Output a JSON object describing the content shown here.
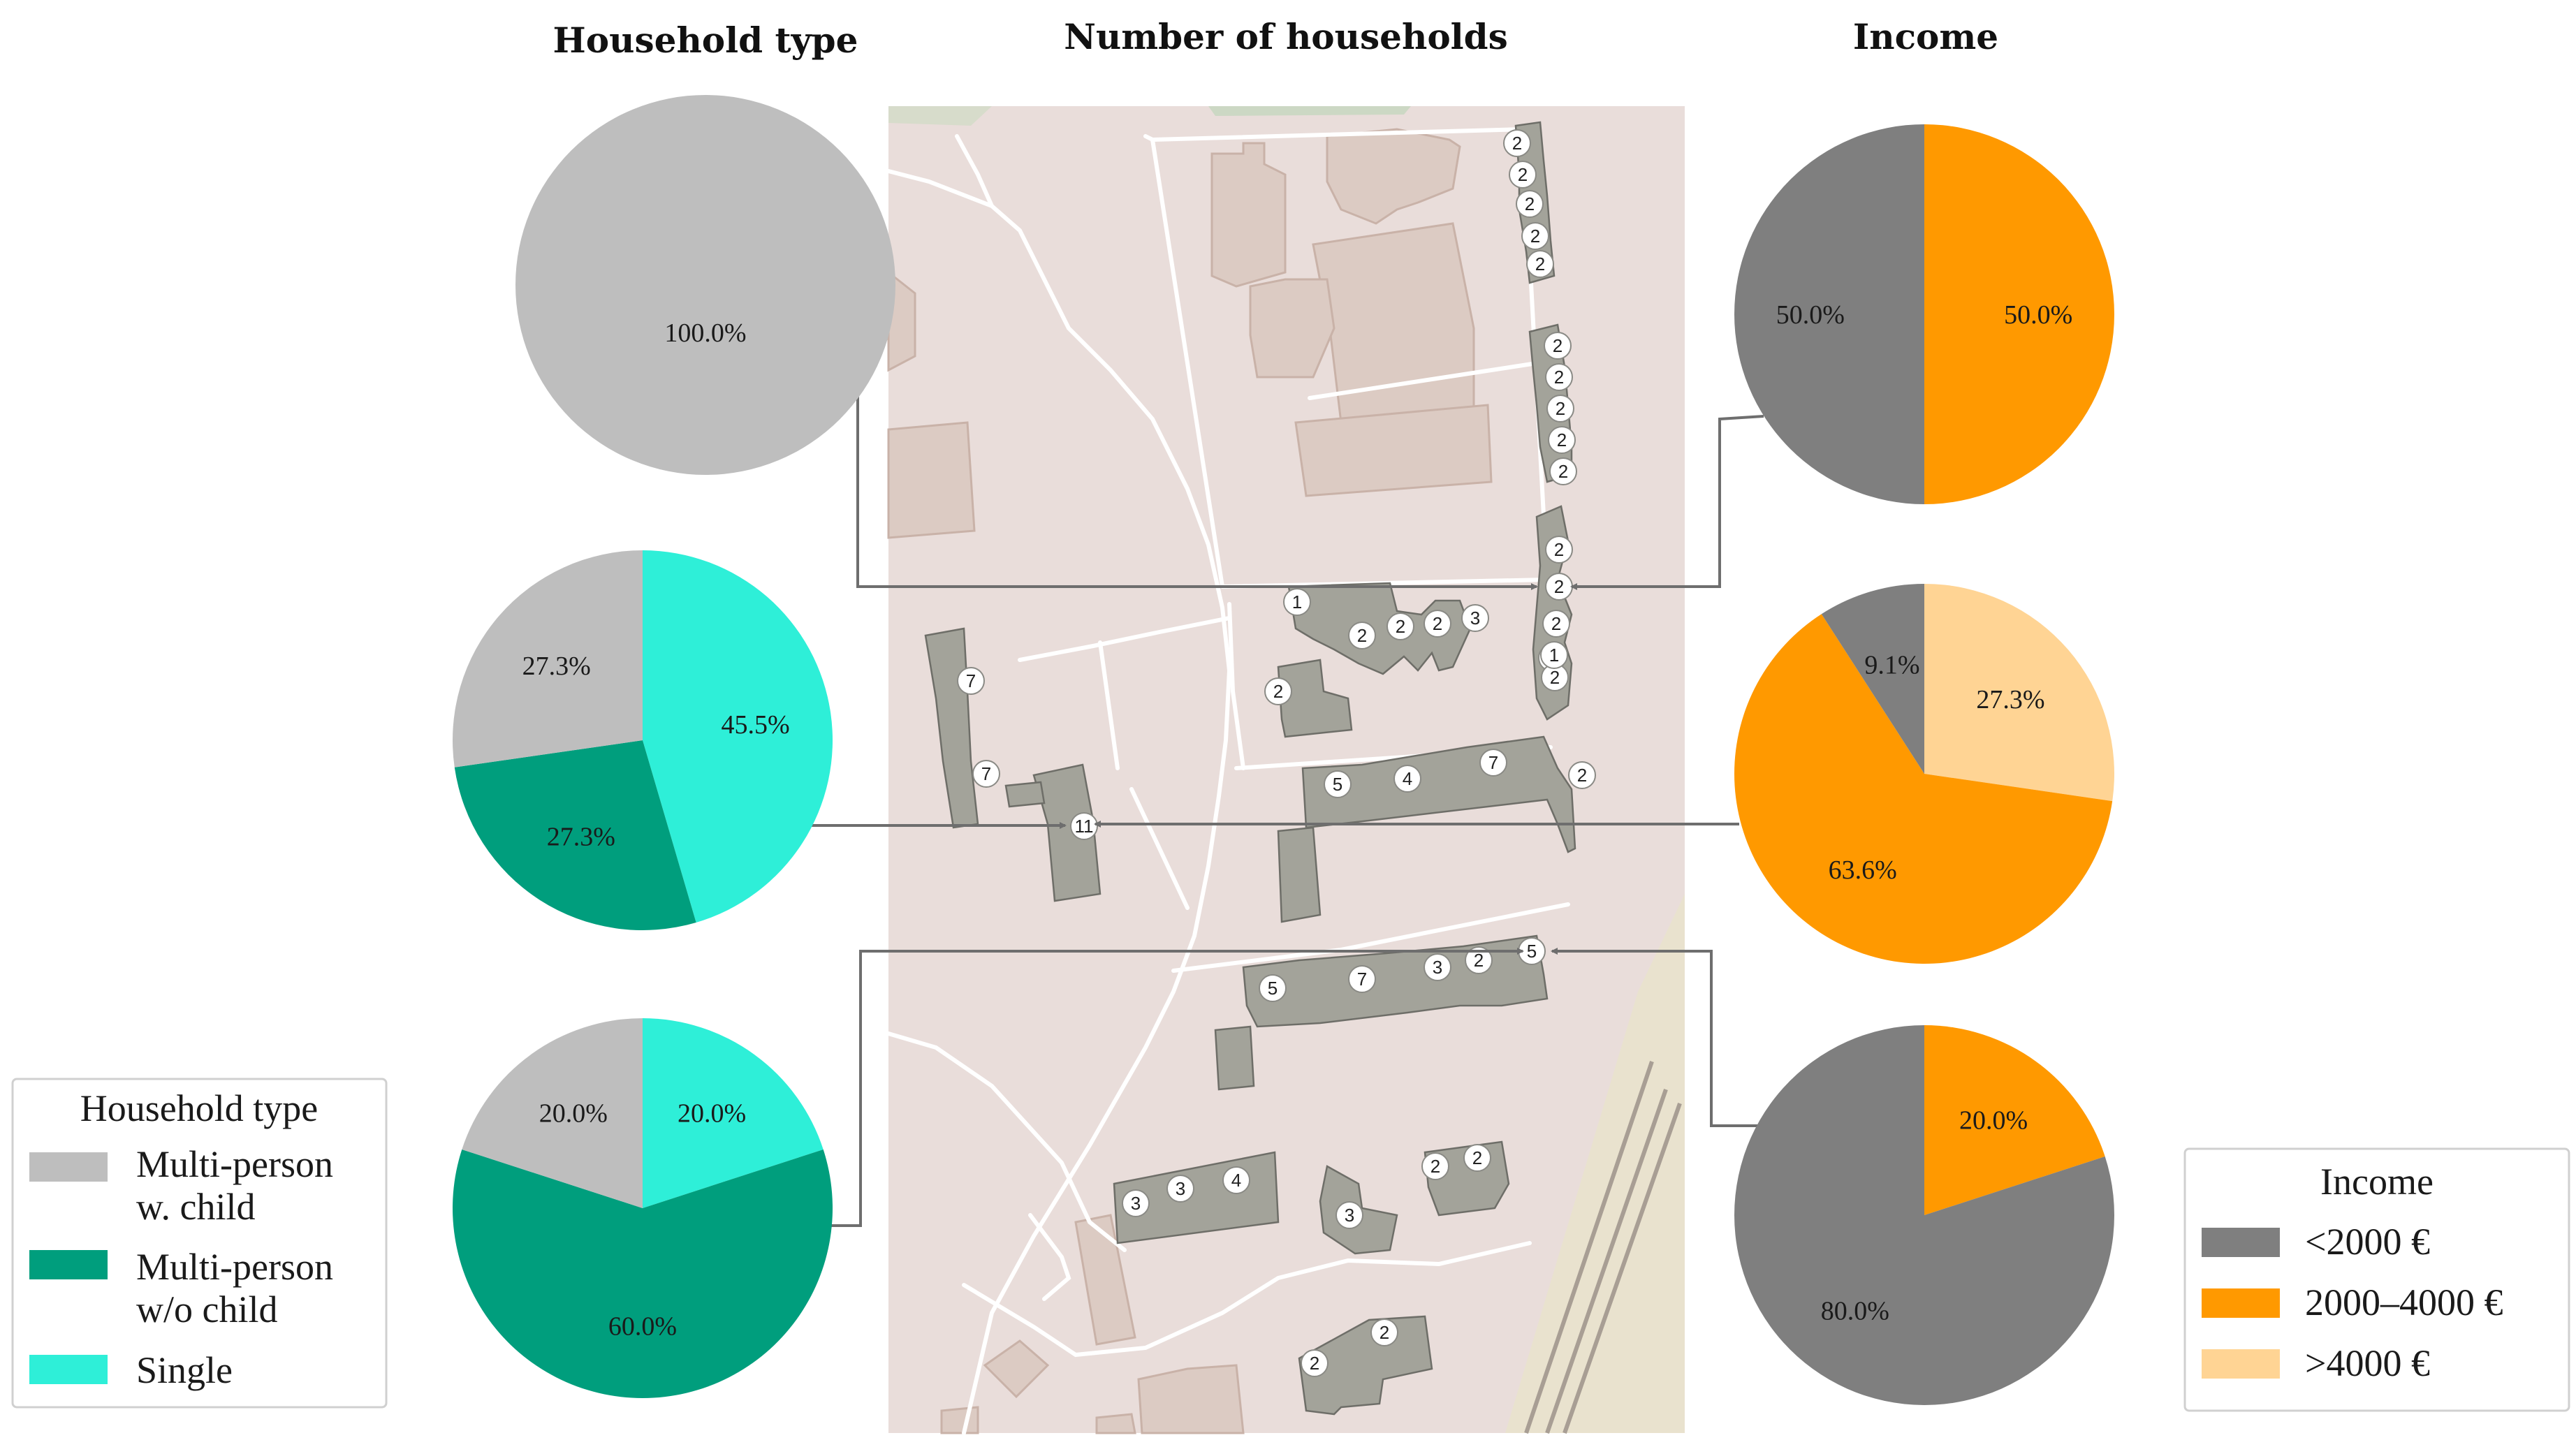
{
  "titles": {
    "household_type": "Household type",
    "number_of_households": "Number of households",
    "income": "Income"
  },
  "colors": {
    "multi_child": "#BEBEBE",
    "multi_no_child": "#009E7D",
    "single": "#2EEFD8",
    "lt2000": "#7F7F7F",
    "mid": "#FF9900",
    "gt4000": "#FFD494",
    "map_bg": "#E9DDDA",
    "building": "#A3A39A"
  },
  "chart_data": [
    {
      "type": "pie",
      "title": "Household type",
      "group": "top",
      "slices": [
        {
          "key": "multi_child",
          "value": 100.0,
          "label": "100.0%"
        }
      ]
    },
    {
      "type": "pie",
      "title": "Household type",
      "group": "middle",
      "slices": [
        {
          "key": "single",
          "value": 45.5,
          "label": "45.5%"
        },
        {
          "key": "multi_no_child",
          "value": 27.3,
          "label": "27.3%"
        },
        {
          "key": "multi_child",
          "value": 27.3,
          "label": "27.3%"
        }
      ]
    },
    {
      "type": "pie",
      "title": "Household type",
      "group": "bottom",
      "slices": [
        {
          "key": "single",
          "value": 20.0,
          "label": "20.0%"
        },
        {
          "key": "multi_no_child",
          "value": 60.0,
          "label": "60.0%"
        },
        {
          "key": "multi_child",
          "value": 20.0,
          "label": "20.0%"
        }
      ]
    },
    {
      "type": "pie",
      "title": "Income",
      "group": "top",
      "slices": [
        {
          "key": "mid",
          "value": 50.0,
          "label": "50.0%"
        },
        {
          "key": "lt2000",
          "value": 50.0,
          "label": "50.0%"
        }
      ]
    },
    {
      "type": "pie",
      "title": "Income",
      "group": "middle",
      "slices": [
        {
          "key": "gt4000",
          "value": 27.3,
          "label": "27.3%"
        },
        {
          "key": "mid",
          "value": 63.6,
          "label": "63.6%"
        },
        {
          "key": "lt2000",
          "value": 9.1,
          "label": "9.1%"
        }
      ]
    },
    {
      "type": "pie",
      "title": "Income",
      "group": "bottom",
      "slices": [
        {
          "key": "mid",
          "value": 20.0,
          "label": "20.0%"
        },
        {
          "key": "lt2000",
          "value": 80.0,
          "label": "80.0%"
        }
      ]
    }
  ],
  "legends": {
    "household_type": {
      "title": "Household type",
      "items": [
        {
          "key": "multi_child",
          "lines": [
            "Multi-person",
            "w. child"
          ]
        },
        {
          "key": "multi_no_child",
          "lines": [
            "Multi-person",
            "w/o child"
          ]
        },
        {
          "key": "single",
          "lines": [
            "Single"
          ]
        }
      ]
    },
    "income": {
      "title": "Income",
      "items": [
        {
          "key": "lt2000",
          "label": "<2000 €"
        },
        {
          "key": "mid",
          "label": "2000–4000 €"
        },
        {
          "key": "gt4000",
          "label": ">4000 €"
        }
      ]
    }
  },
  "map": {
    "household_labels": [
      "2",
      "2",
      "2",
      "2",
      "2",
      "2",
      "2",
      "2",
      "2",
      "2",
      "2",
      "2",
      "2",
      "2",
      "2",
      "1",
      "1",
      "2",
      "2",
      "2",
      "3",
      "2",
      "7",
      "7",
      "11",
      "5",
      "4",
      "7",
      "2",
      "5",
      "7",
      "3",
      "2",
      "5",
      "3",
      "3",
      "4",
      "3",
      "2",
      "2",
      "2",
      "2"
    ]
  }
}
